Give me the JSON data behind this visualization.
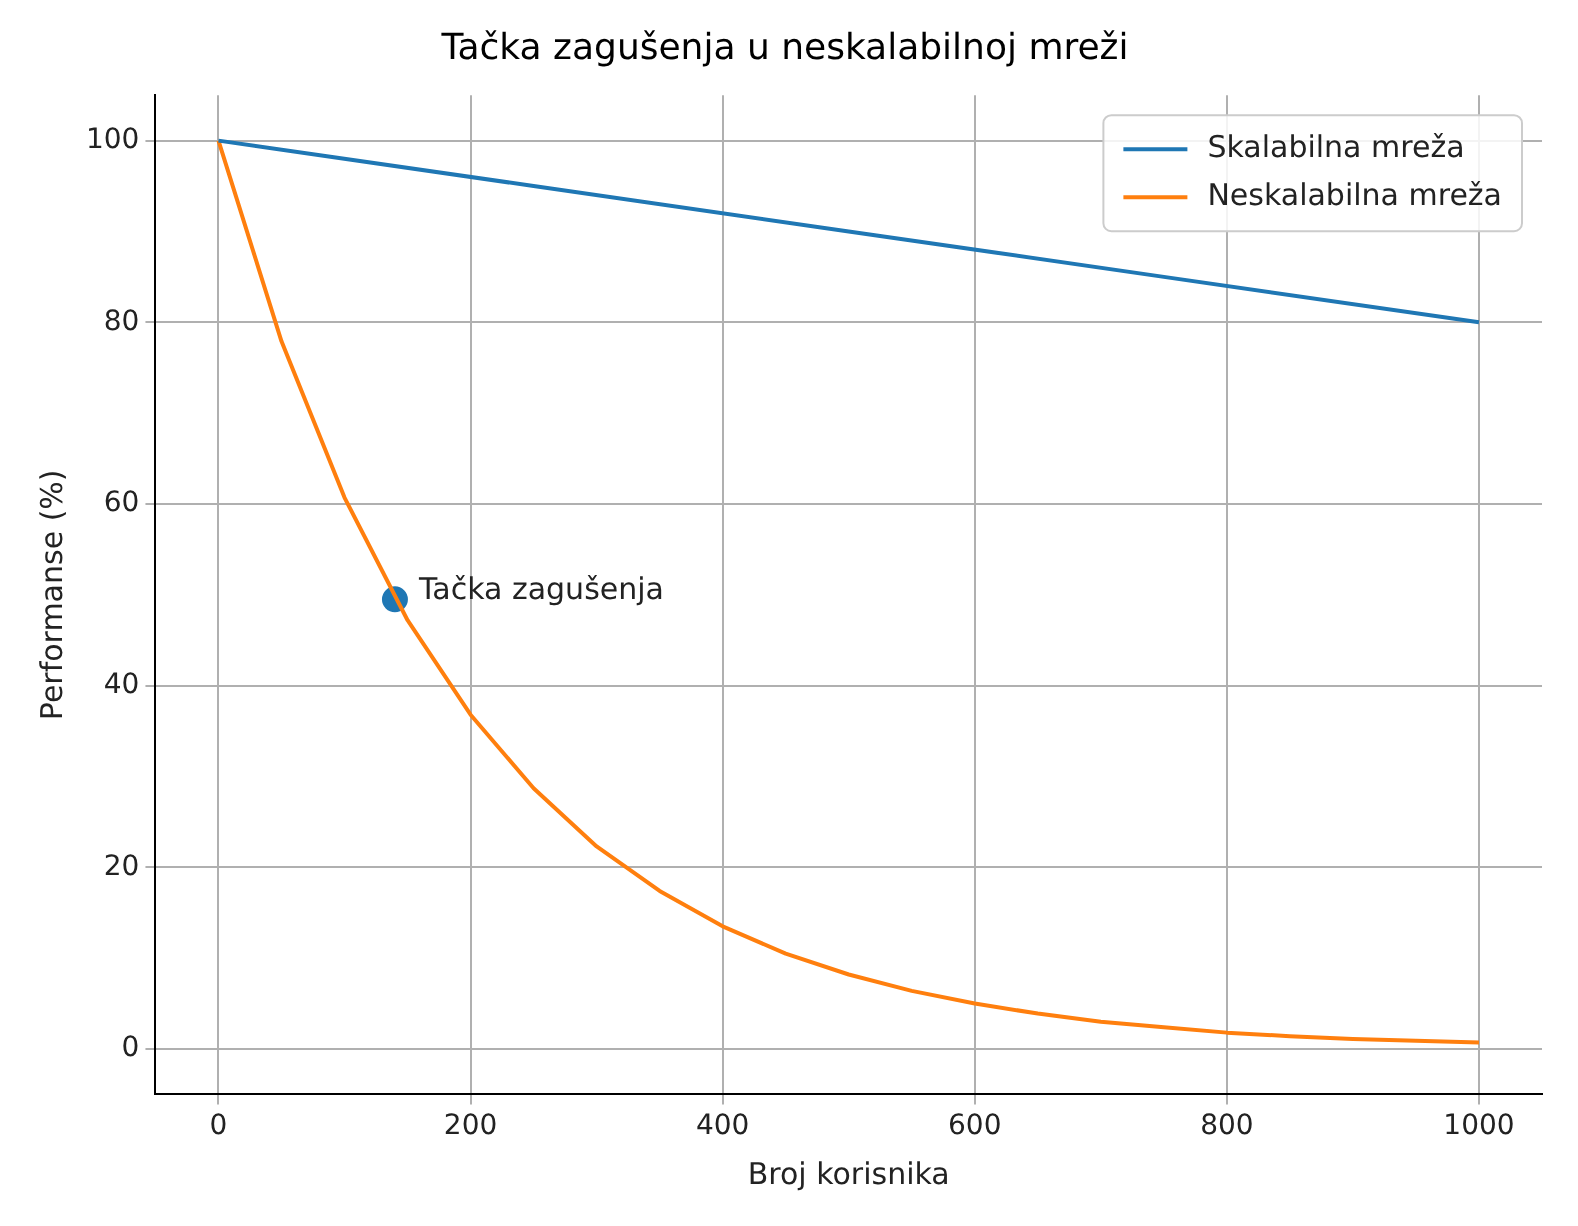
{
  "chart_data": {
    "type": "line",
    "title": "Tačka zagušenja u neskalabilnoj mreži",
    "xlabel": "Broj korisnika",
    "ylabel": "Performanse (%)",
    "xlim": [
      -50,
      1050
    ],
    "xticks": [
      0,
      200,
      400,
      600,
      800,
      1000
    ],
    "ylim": [
      -5,
      105
    ],
    "yticks": [
      0,
      20,
      40,
      60,
      80,
      100
    ],
    "grid": true,
    "legend": "top right",
    "marker": "none",
    "line_style": "solid",
    "series": [
      {
        "name": "Skalabilna mreža",
        "color": "#1f77b4",
        "x": [
          0,
          250,
          500,
          750,
          1000
        ],
        "values": [
          100,
          95,
          90,
          85,
          80
        ]
      },
      {
        "name": "Neskalabilna mreža",
        "color": "#ff7f0e",
        "x": [
          0,
          50,
          100,
          150,
          200,
          250,
          300,
          350,
          400,
          450,
          500,
          550,
          600,
          650,
          700,
          750,
          800,
          850,
          900,
          950,
          1000
        ],
        "values": [
          100,
          77.9,
          60.7,
          47.2,
          36.8,
          28.7,
          22.3,
          17.4,
          13.5,
          10.5,
          8.2,
          6.4,
          5.0,
          3.9,
          3.0,
          2.4,
          1.8,
          1.4,
          1.1,
          0.9,
          0.7
        ]
      },
      {
        "type": "scatter",
        "marker": "circle",
        "color": "#1f77b4",
        "x": [
          140
        ],
        "values": [
          49.5
        ]
      }
    ],
    "annotations": [
      {
        "text": "Tačka zagušenja",
        "x": 140,
        "y": 49.5
      }
    ]
  }
}
